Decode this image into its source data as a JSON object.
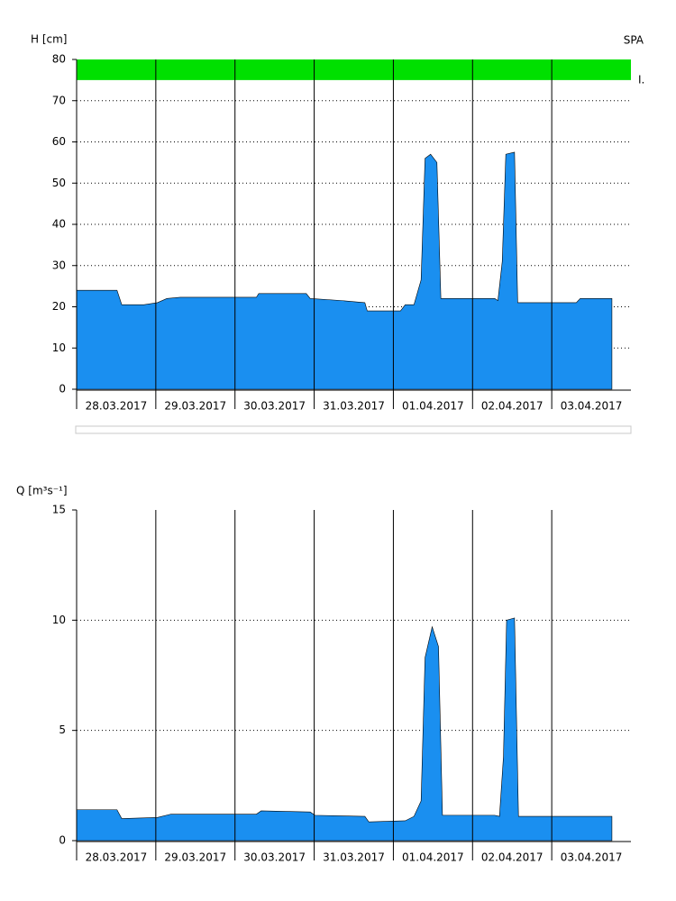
{
  "chart_data": [
    {
      "type": "area",
      "ylabel": "H [cm]",
      "color": "#1a8ff0",
      "x": [
        0,
        0.375,
        0.51,
        0.57,
        0.85,
        1.02,
        1.14,
        1.31,
        2.27,
        2.3,
        2.9,
        2.95,
        3.35,
        3.64,
        3.67,
        4.09,
        4.15,
        4.26,
        4.35,
        4.4,
        4.47,
        4.55,
        4.6,
        5.28,
        5.32,
        5.375,
        5.42,
        5.53,
        5.57,
        6.31,
        6.36,
        6.76
      ],
      "values": [
        24,
        24,
        24,
        20.5,
        20.5,
        21,
        22,
        22.3,
        22.3,
        23.2,
        23.2,
        22,
        21.5,
        21,
        19,
        19,
        20.5,
        20.5,
        26.5,
        56,
        57,
        55,
        22,
        22,
        21.5,
        31,
        57,
        57.5,
        21,
        21,
        22,
        22
      ],
      "xlim": [
        0,
        7
      ],
      "xticks": [
        {
          "value": 0,
          "label": "28.03.2017"
        },
        {
          "value": 1,
          "label": "29.03.2017"
        },
        {
          "value": 2,
          "label": "30.03.2017"
        },
        {
          "value": 3,
          "label": "31.03.2017"
        },
        {
          "value": 4,
          "label": "01.04.2017"
        },
        {
          "value": 5,
          "label": "02.04.2017"
        },
        {
          "value": 6,
          "label": "03.04.2017"
        }
      ],
      "ylim": [
        0,
        80
      ],
      "yticks": [
        0,
        10,
        20,
        30,
        40,
        50,
        60,
        70,
        80
      ],
      "grid": true,
      "band_title": "SPA",
      "bands": [
        {
          "from": 75,
          "to": 80,
          "color": "#00e000",
          "label": "I."
        }
      ]
    },
    {
      "type": "area",
      "ylabel": "Q [m³s⁻¹]",
      "color": "#1a8ff0",
      "x": [
        0,
        0.51,
        0.57,
        1.02,
        1.19,
        2.27,
        2.33,
        2.95,
        3.01,
        3.64,
        3.69,
        4.15,
        4.26,
        4.35,
        4.4,
        4.49,
        4.57,
        4.62,
        5.28,
        5.34,
        5.39,
        5.43,
        5.53,
        5.58,
        6.76
      ],
      "values": [
        1.4,
        1.4,
        1.0,
        1.05,
        1.2,
        1.2,
        1.35,
        1.3,
        1.15,
        1.1,
        0.85,
        0.9,
        1.1,
        1.8,
        8.3,
        9.7,
        8.8,
        1.15,
        1.15,
        1.1,
        3.8,
        10,
        10.1,
        1.1,
        1.1
      ],
      "xlim": [
        0,
        7
      ],
      "xticks": [
        {
          "value": 0,
          "label": "28.03.2017"
        },
        {
          "value": 1,
          "label": "29.03.2017"
        },
        {
          "value": 2,
          "label": "30.03.2017"
        },
        {
          "value": 3,
          "label": "31.03.2017"
        },
        {
          "value": 4,
          "label": "01.04.2017"
        },
        {
          "value": 5,
          "label": "02.04.2017"
        },
        {
          "value": 6,
          "label": "03.04.2017"
        }
      ],
      "ylim": [
        0,
        15
      ],
      "yticks": [
        0,
        5,
        10,
        15
      ],
      "grid": true
    }
  ]
}
